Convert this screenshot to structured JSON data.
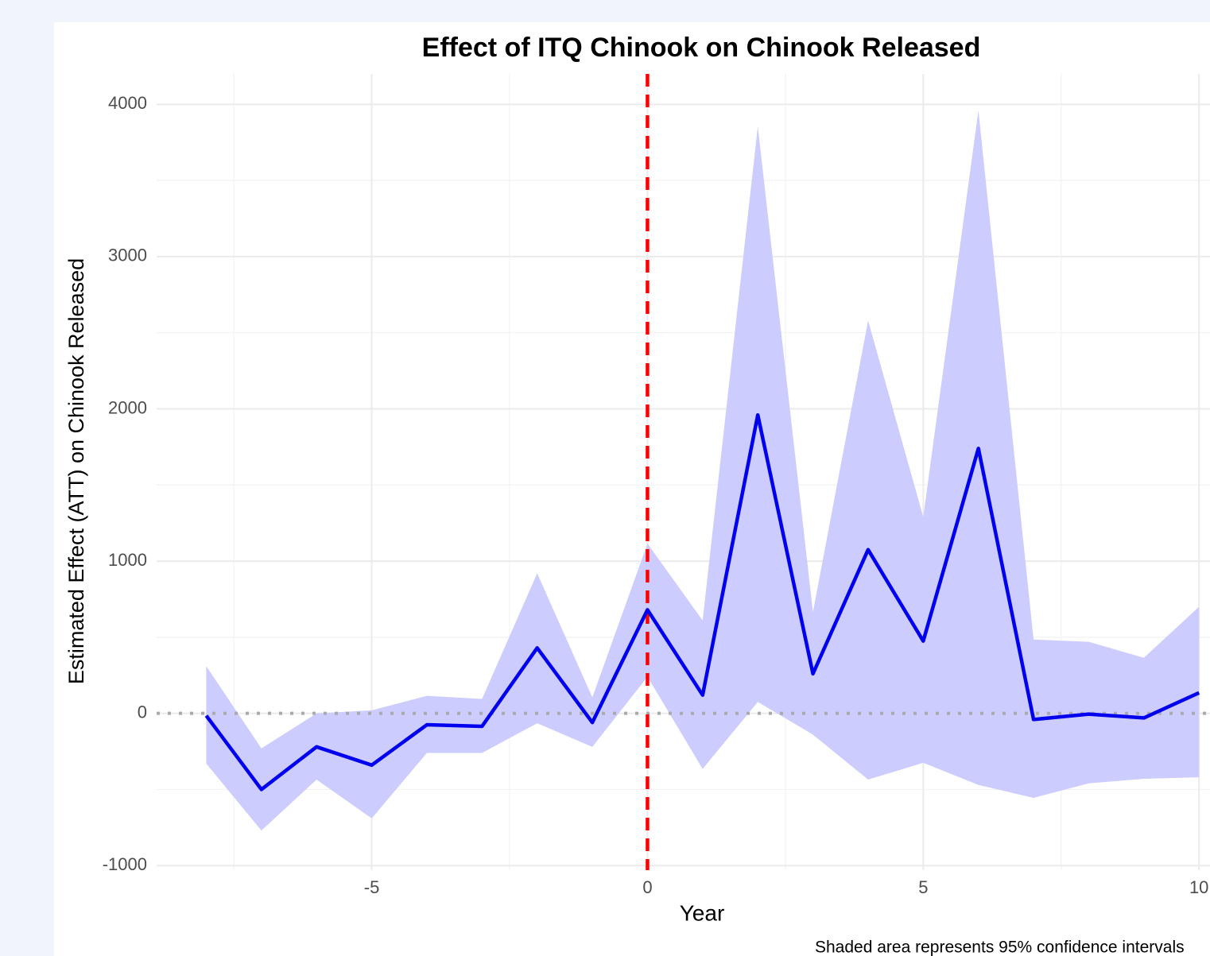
{
  "chart_data": {
    "type": "line",
    "title": "Effect of ITQ Chinook on Chinook Released",
    "x_label": "Year",
    "y_label": "Estimated Effect (ATT) on Chinook Released",
    "caption": "Shaded area represents 95% confidence intervals",
    "x": [
      -8,
      -7,
      -6,
      -5,
      -4,
      -3,
      -2,
      -1,
      0,
      1,
      2,
      3,
      4,
      5,
      6,
      7,
      8,
      9,
      10
    ],
    "series": [
      {
        "color": "#0000ee",
        "band_color": "#ccccff",
        "values": [
          -15,
          -500,
          -220,
          -340,
          -75,
          -85,
          430,
          -60,
          680,
          120,
          1960,
          260,
          1075,
          475,
          1740,
          -40,
          -5,
          -30,
          135
        ],
        "upper": [
          310,
          -230,
          0,
          20,
          115,
          95,
          920,
          105,
          1115,
          610,
          3855,
          665,
          2580,
          1290,
          3960,
          485,
          470,
          365,
          700
        ],
        "lower": [
          -330,
          -770,
          -435,
          -690,
          -260,
          -260,
          -65,
          -220,
          240,
          -365,
          75,
          -140,
          -435,
          -325,
          -470,
          -555,
          -460,
          -430,
          -420
        ]
      }
    ],
    "xlim": [
      -8.9,
      10.3
    ],
    "ylim": [
      -1030,
      4200
    ],
    "xticks": [
      -5,
      0,
      5,
      10
    ],
    "yticks": [
      -1000,
      0,
      1000,
      2000,
      3000,
      4000
    ],
    "x_minor_ticks": [
      -7.5,
      -2.5,
      2.5,
      7.5
    ],
    "y_minor_ticks": [
      -500,
      500,
      1500,
      2500,
      3500
    ],
    "grid": true,
    "vline": {
      "value": 0,
      "color": "#ff0000"
    },
    "hline": {
      "value": 0,
      "color": "#aaaaaa"
    }
  }
}
